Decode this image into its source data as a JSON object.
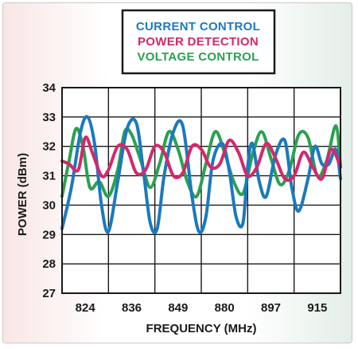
{
  "chart_data": {
    "type": "line",
    "xlabel": "FREQUENCY (MHz)",
    "ylabel": "POWER (dBm)",
    "x_tick_labels": [
      "824",
      "836",
      "849",
      "880",
      "897",
      "915"
    ],
    "ylim": [
      27,
      34
    ],
    "y_ticks": [
      27,
      28,
      29,
      30,
      31,
      32,
      33,
      34
    ],
    "grid": true,
    "legend_position": "top-center",
    "x_index_range": [
      0,
      6
    ],
    "series": [
      {
        "name": "CURRENT CONTROL",
        "color": "#1b79bf",
        "x": [
          0,
          0.2,
          0.4,
          0.55,
          0.7,
          0.85,
          1.0,
          1.2,
          1.4,
          1.6,
          1.75,
          1.9,
          2.05,
          2.2,
          2.4,
          2.6,
          2.8,
          2.95,
          3.1,
          3.25,
          3.45,
          3.6,
          3.75,
          3.9,
          4.0,
          4.1,
          4.25,
          4.4,
          4.6,
          4.8,
          4.95,
          5.1,
          5.3,
          5.45,
          5.6,
          5.75,
          5.9,
          6.0
        ],
        "values": [
          29.2,
          30.6,
          32.5,
          33.0,
          32.1,
          30.0,
          29.1,
          30.8,
          32.6,
          32.8,
          31.2,
          29.4,
          29.2,
          31.0,
          32.5,
          32.7,
          30.3,
          29.1,
          29.6,
          31.5,
          32.1,
          31.2,
          29.6,
          29.4,
          31.3,
          32.1,
          30.8,
          30.3,
          31.7,
          32.2,
          30.6,
          29.8,
          30.9,
          32.0,
          31.4,
          31.4,
          31.9,
          30.9
        ]
      },
      {
        "name": "POWER DETECTION",
        "color": "#d4286a",
        "x": [
          0,
          0.15,
          0.35,
          0.5,
          0.65,
          0.85,
          1.0,
          1.2,
          1.4,
          1.6,
          1.8,
          2.0,
          2.2,
          2.4,
          2.6,
          2.8,
          3.0,
          3.2,
          3.4,
          3.6,
          3.8,
          4.0,
          4.2,
          4.4,
          4.6,
          4.8,
          5.0,
          5.2,
          5.4,
          5.6,
          5.8,
          6.0
        ],
        "values": [
          31.5,
          31.4,
          31.2,
          32.3,
          31.8,
          31.0,
          31.2,
          32.0,
          31.9,
          31.1,
          31.2,
          32.0,
          31.8,
          31.0,
          31.1,
          32.0,
          31.9,
          31.3,
          31.4,
          32.2,
          31.8,
          31.0,
          31.3,
          32.1,
          31.6,
          30.9,
          31.0,
          31.8,
          31.3,
          30.9,
          31.9,
          31.3
        ]
      },
      {
        "name": "VOLTAGE CONTROL",
        "color": "#2aa152",
        "x": [
          0,
          0.15,
          0.3,
          0.45,
          0.6,
          0.8,
          1.0,
          1.2,
          1.35,
          1.5,
          1.7,
          1.9,
          2.1,
          2.3,
          2.5,
          2.7,
          2.9,
          3.1,
          3.3,
          3.5,
          3.7,
          3.9,
          4.1,
          4.3,
          4.5,
          4.7,
          4.9,
          5.1,
          5.3,
          5.5,
          5.7,
          5.9,
          6.0
        ],
        "values": [
          30.3,
          31.5,
          32.6,
          32.0,
          30.6,
          30.8,
          30.3,
          31.2,
          32.5,
          32.4,
          31.5,
          30.6,
          31.4,
          32.5,
          31.9,
          30.8,
          30.3,
          31.4,
          32.5,
          31.8,
          30.8,
          30.4,
          31.7,
          32.5,
          31.6,
          30.7,
          31.2,
          32.4,
          32.3,
          31.0,
          31.5,
          32.7,
          31.3
        ]
      }
    ]
  }
}
